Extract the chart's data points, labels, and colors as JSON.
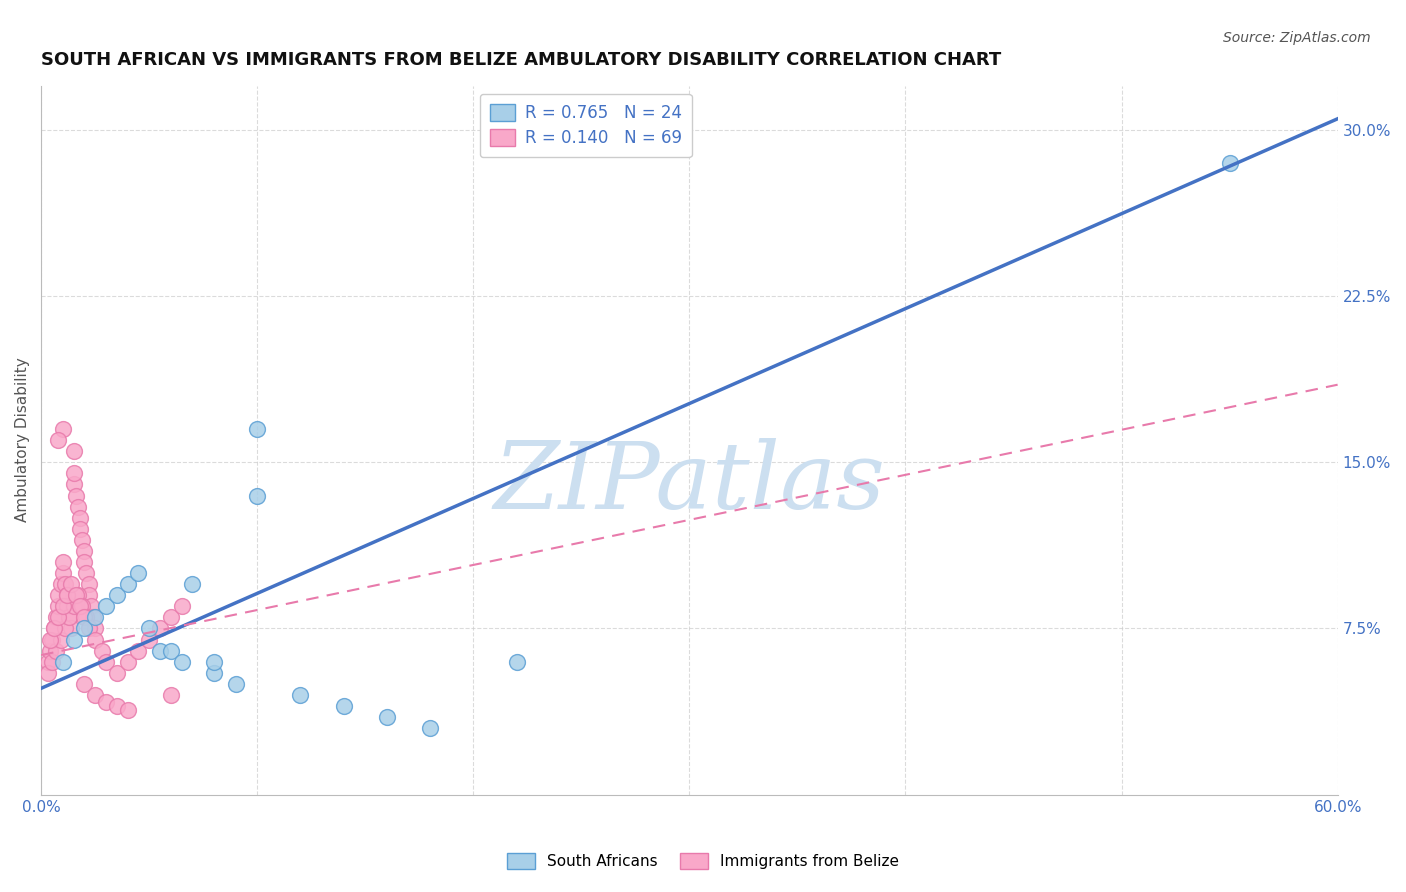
{
  "title": "SOUTH AFRICAN VS IMMIGRANTS FROM BELIZE AMBULATORY DISABILITY CORRELATION CHART",
  "source": "Source: ZipAtlas.com",
  "ylabel": "Ambulatory Disability",
  "xlim": [
    0.0,
    0.6
  ],
  "ylim": [
    0.0,
    0.32
  ],
  "xticks": [
    0.0,
    0.1,
    0.2,
    0.3,
    0.4,
    0.5,
    0.6
  ],
  "xticklabels": [
    "0.0%",
    "",
    "",
    "",
    "",
    "",
    "60.0%"
  ],
  "yticks": [
    0.075,
    0.15,
    0.225,
    0.3
  ],
  "yticklabels": [
    "7.5%",
    "15.0%",
    "22.5%",
    "30.0%"
  ],
  "south_africans": {
    "color": "#a8cfe8",
    "border_color": "#5b9fd4",
    "x": [
      0.01,
      0.015,
      0.02,
      0.025,
      0.03,
      0.035,
      0.04,
      0.045,
      0.05,
      0.055,
      0.06,
      0.065,
      0.07,
      0.08,
      0.09,
      0.1,
      0.12,
      0.14,
      0.16,
      0.18,
      0.22,
      0.55,
      0.1,
      0.08
    ],
    "y": [
      0.06,
      0.07,
      0.075,
      0.08,
      0.085,
      0.09,
      0.095,
      0.1,
      0.075,
      0.065,
      0.065,
      0.06,
      0.095,
      0.055,
      0.05,
      0.135,
      0.045,
      0.04,
      0.035,
      0.03,
      0.06,
      0.285,
      0.165,
      0.06
    ]
  },
  "belize_immigrants": {
    "color": "#f9a8c9",
    "border_color": "#e87aab",
    "x": [
      0.003,
      0.004,
      0.005,
      0.006,
      0.007,
      0.008,
      0.008,
      0.009,
      0.01,
      0.01,
      0.011,
      0.012,
      0.012,
      0.013,
      0.014,
      0.015,
      0.015,
      0.016,
      0.017,
      0.018,
      0.018,
      0.019,
      0.02,
      0.02,
      0.021,
      0.022,
      0.022,
      0.023,
      0.024,
      0.025,
      0.003,
      0.005,
      0.007,
      0.009,
      0.011,
      0.013,
      0.015,
      0.017,
      0.019,
      0.021,
      0.004,
      0.006,
      0.008,
      0.01,
      0.012,
      0.014,
      0.016,
      0.018,
      0.02,
      0.022,
      0.025,
      0.028,
      0.03,
      0.035,
      0.04,
      0.045,
      0.05,
      0.055,
      0.06,
      0.065,
      0.02,
      0.025,
      0.03,
      0.035,
      0.04,
      0.01,
      0.015,
      0.008,
      0.06
    ],
    "y": [
      0.06,
      0.065,
      0.07,
      0.075,
      0.08,
      0.085,
      0.09,
      0.095,
      0.1,
      0.105,
      0.095,
      0.09,
      0.085,
      0.08,
      0.075,
      0.14,
      0.145,
      0.135,
      0.13,
      0.125,
      0.12,
      0.115,
      0.11,
      0.105,
      0.1,
      0.095,
      0.09,
      0.085,
      0.08,
      0.075,
      0.055,
      0.06,
      0.065,
      0.07,
      0.075,
      0.08,
      0.085,
      0.09,
      0.085,
      0.08,
      0.07,
      0.075,
      0.08,
      0.085,
      0.09,
      0.095,
      0.09,
      0.085,
      0.08,
      0.075,
      0.07,
      0.065,
      0.06,
      0.055,
      0.06,
      0.065,
      0.07,
      0.075,
      0.08,
      0.085,
      0.05,
      0.045,
      0.042,
      0.04,
      0.038,
      0.165,
      0.155,
      0.16,
      0.045
    ]
  },
  "blue_line": {
    "x": [
      0.0,
      0.6
    ],
    "y": [
      0.048,
      0.305
    ],
    "color": "#4472c4",
    "linewidth": 2.5
  },
  "pink_line": {
    "x": [
      0.0,
      0.6
    ],
    "y": [
      0.063,
      0.185
    ],
    "color": "#e87aab",
    "linewidth": 1.5
  },
  "watermark": "ZIPatlas",
  "watermark_color": "#ccdff0",
  "background_color": "#ffffff",
  "grid_color": "#cccccc",
  "title_fontsize": 13,
  "axis_label_fontsize": 11,
  "tick_fontsize": 11,
  "source_fontsize": 10,
  "legend_r1": "R = 0.765   N = 24",
  "legend_r2": "R = 0.140   N = 69",
  "legend_color": "#4472c4"
}
